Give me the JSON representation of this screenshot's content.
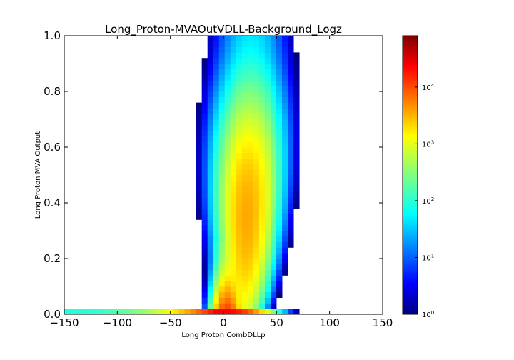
{
  "chart_data": {
    "type": "heatmap",
    "title": "Long_Proton-MVAOutVDLL-Background_Logz",
    "xlabel": "Long Proton CombDLLp",
    "ylabel": "Long Proton MVA Output",
    "xlim": [
      -150,
      150
    ],
    "ylim": [
      0.0,
      1.0
    ],
    "x_ticks": [
      "−150",
      "−100",
      "−50",
      "0",
      "50",
      "100",
      "150"
    ],
    "x_tick_values": [
      -150,
      -100,
      -50,
      0,
      50,
      100,
      150
    ],
    "y_ticks": [
      "0.0",
      "0.2",
      "0.4",
      "0.6",
      "0.8",
      "1.0"
    ],
    "y_tick_values": [
      0.0,
      0.2,
      0.4,
      0.6,
      0.8,
      1.0
    ],
    "colorbar": {
      "scale": "log",
      "range": [
        1,
        80000
      ],
      "tick_values": [
        1,
        10,
        100,
        1000,
        10000
      ],
      "tick_labels": [
        {
          "base": "10",
          "exp": "0"
        },
        {
          "base": "10",
          "exp": "1"
        },
        {
          "base": "10",
          "exp": "2"
        },
        {
          "base": "10",
          "exp": "3"
        },
        {
          "base": "10",
          "exp": "4"
        }
      ],
      "colormap": "jet"
    },
    "bins": {
      "x_bin_width": 5.4,
      "y_bin_width": 0.02
    },
    "grid": false,
    "legend": "none",
    "description_of_distribution": [
      {
        "x_range": [
          -150,
          -10
        ],
        "y_range": [
          0.0,
          0.02
        ],
        "count_range": [
          100,
          20000
        ]
      },
      {
        "x_range": [
          -10,
          60
        ],
        "y_range": [
          0.0,
          1.0
        ],
        "peak_x": 25,
        "peak_y": 0.4,
        "peak_count": 2000
      }
    ]
  },
  "colors": {
    "jet": [
      "#00007f",
      "#0000ff",
      "#007fff",
      "#00ffff",
      "#7fff7f",
      "#ffff00",
      "#ff7f00",
      "#ff0000",
      "#7f0000"
    ]
  }
}
